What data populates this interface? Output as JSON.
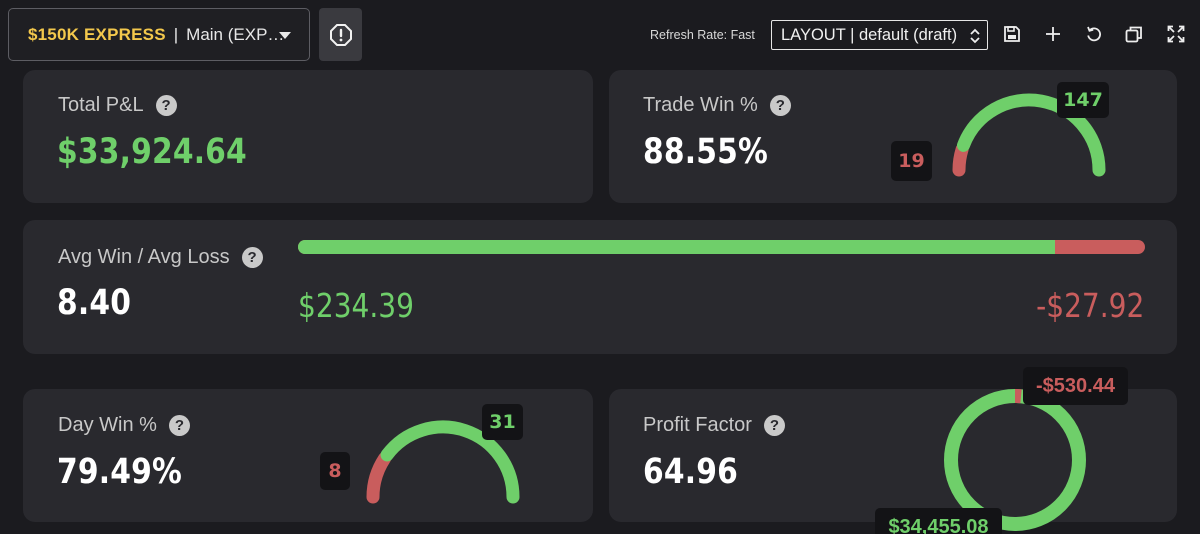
{
  "header": {
    "account_name": "$150K EXPRESS",
    "account_separator": "|",
    "account_sub": "Main (EXP…",
    "refresh_label": "Refresh Rate: Fast",
    "layout_label": "LAYOUT | default (draft)",
    "icons": [
      "chevron-down-icon",
      "alert-octagon-icon",
      "save-icon",
      "plus-icon",
      "undo-icon",
      "duplicate-icon",
      "expand-icon"
    ]
  },
  "colors": {
    "green": "#6fcf6a",
    "red": "#c95d5d",
    "accent": "#f3c84c",
    "card": "#29292e",
    "background": "#1b1b1f"
  },
  "total_pnl": {
    "label": "Total P&L",
    "help": "?",
    "value": "$33,924.64"
  },
  "trade_win": {
    "label": "Trade Win %",
    "help": "?",
    "value": "88.55%",
    "wins": "147",
    "losses": "19",
    "win_fraction": 0.8855
  },
  "avg_win_loss": {
    "label": "Avg Win / Avg Loss",
    "help": "?",
    "value": "8.40",
    "avg_win": "$234.39",
    "avg_loss": "-$27.92",
    "win_fraction": 0.8935
  },
  "day_win": {
    "label": "Day Win %",
    "help": "?",
    "value": "79.49%",
    "wins": "31",
    "losses": "8",
    "win_fraction": 0.7949
  },
  "profit_factor": {
    "label": "Profit Factor",
    "help": "?",
    "value": "64.96",
    "gross_loss": "-$530.44",
    "gross_profit": "$34,455.08",
    "loss_fraction": 0.015
  }
}
